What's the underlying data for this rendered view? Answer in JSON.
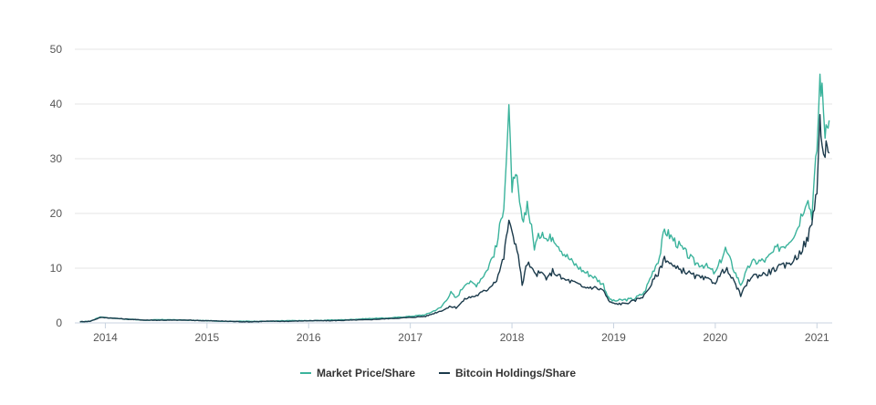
{
  "chart_data": {
    "type": "line",
    "title": "",
    "xlabel": "",
    "ylabel": "",
    "xlim": [
      2013.7,
      2021.15
    ],
    "ylim": [
      0,
      50
    ],
    "yticks": [
      0,
      10,
      20,
      30,
      40,
      50
    ],
    "xticks": [
      2014,
      2015,
      2016,
      2017,
      2018,
      2019,
      2020,
      2021
    ],
    "xtick_labels": [
      "2014",
      "2015",
      "2016",
      "2017",
      "2018",
      "2019",
      "2020",
      "2021"
    ],
    "grid": "horizontal",
    "legend_position": "bottom-center",
    "series": [
      {
        "name": "Market Price/Share",
        "color": "#3bb39c",
        "x": [
          2013.75,
          2013.85,
          2013.95,
          2014.05,
          2014.2,
          2014.4,
          2014.6,
          2014.8,
          2015.0,
          2015.2,
          2015.4,
          2015.6,
          2015.8,
          2016.0,
          2016.2,
          2016.4,
          2016.6,
          2016.8,
          2017.0,
          2017.15,
          2017.3,
          2017.4,
          2017.45,
          2017.55,
          2017.65,
          2017.75,
          2017.85,
          2017.92,
          2017.97,
          2018.0,
          2018.05,
          2018.1,
          2018.15,
          2018.22,
          2018.3,
          2018.35,
          2018.4,
          2018.5,
          2018.6,
          2018.7,
          2018.8,
          2018.9,
          2018.95,
          2019.0,
          2019.1,
          2019.2,
          2019.3,
          2019.4,
          2019.45,
          2019.5,
          2019.55,
          2019.6,
          2019.7,
          2019.8,
          2019.9,
          2020.0,
          2020.1,
          2020.2,
          2020.25,
          2020.35,
          2020.5,
          2020.6,
          2020.7,
          2020.8,
          2020.9,
          2020.95,
          2021.0,
          2021.03,
          2021.05,
          2021.08,
          2021.1,
          2021.12
        ],
        "values": [
          0.2,
          0.3,
          1.1,
          0.9,
          0.7,
          0.5,
          0.6,
          0.5,
          0.4,
          0.3,
          0.3,
          0.3,
          0.4,
          0.4,
          0.5,
          0.6,
          0.8,
          0.9,
          1.2,
          1.5,
          2.8,
          5.5,
          4.5,
          7.5,
          7.0,
          9.5,
          14.0,
          22.0,
          38.0,
          25.0,
          26.0,
          18.0,
          22.0,
          14.0,
          17.0,
          15.0,
          16.0,
          13.0,
          11.0,
          9.5,
          8.5,
          7.0,
          4.5,
          4.0,
          4.2,
          4.4,
          5.5,
          10.0,
          12.0,
          17.0,
          16.0,
          15.0,
          13.0,
          11.0,
          10.5,
          9.0,
          13.5,
          9.0,
          7.0,
          11.0,
          11.5,
          13.5,
          14.5,
          17.0,
          23.0,
          20.0,
          32.0,
          45.0,
          42.0,
          35.0,
          38.0,
          37.0
        ]
      },
      {
        "name": "Bitcoin Holdings/Share",
        "color": "#1b3a4b",
        "x": [
          2013.75,
          2013.85,
          2013.95,
          2014.05,
          2014.2,
          2014.4,
          2014.6,
          2014.8,
          2015.0,
          2015.2,
          2015.4,
          2015.6,
          2015.8,
          2016.0,
          2016.2,
          2016.4,
          2016.6,
          2016.8,
          2017.0,
          2017.15,
          2017.3,
          2017.4,
          2017.45,
          2017.55,
          2017.65,
          2017.75,
          2017.85,
          2017.92,
          2017.97,
          2018.0,
          2018.05,
          2018.1,
          2018.15,
          2018.22,
          2018.3,
          2018.35,
          2018.4,
          2018.5,
          2018.6,
          2018.7,
          2018.8,
          2018.9,
          2018.95,
          2019.0,
          2019.1,
          2019.2,
          2019.3,
          2019.4,
          2019.45,
          2019.5,
          2019.55,
          2019.6,
          2019.7,
          2019.8,
          2019.9,
          2020.0,
          2020.1,
          2020.2,
          2020.25,
          2020.35,
          2020.5,
          2020.6,
          2020.7,
          2020.8,
          2020.9,
          2020.95,
          2021.0,
          2021.03,
          2021.05,
          2021.08,
          2021.1,
          2021.12
        ],
        "values": [
          0.2,
          0.3,
          1.0,
          0.9,
          0.7,
          0.5,
          0.5,
          0.5,
          0.4,
          0.3,
          0.2,
          0.3,
          0.3,
          0.4,
          0.4,
          0.5,
          0.6,
          0.8,
          1.0,
          1.2,
          2.2,
          3.0,
          2.8,
          4.5,
          5.0,
          6.0,
          8.0,
          12.0,
          19.0,
          16.0,
          14.0,
          7.0,
          11.0,
          9.0,
          9.0,
          8.0,
          9.5,
          8.0,
          7.5,
          6.5,
          6.5,
          6.0,
          4.0,
          3.5,
          3.5,
          4.0,
          5.0,
          8.0,
          9.5,
          12.0,
          11.0,
          10.0,
          9.5,
          8.5,
          8.0,
          7.5,
          10.0,
          7.0,
          5.0,
          8.5,
          9.0,
          10.0,
          10.5,
          12.0,
          15.0,
          18.0,
          25.0,
          37.0,
          33.0,
          29.0,
          34.0,
          31.0
        ]
      }
    ]
  }
}
